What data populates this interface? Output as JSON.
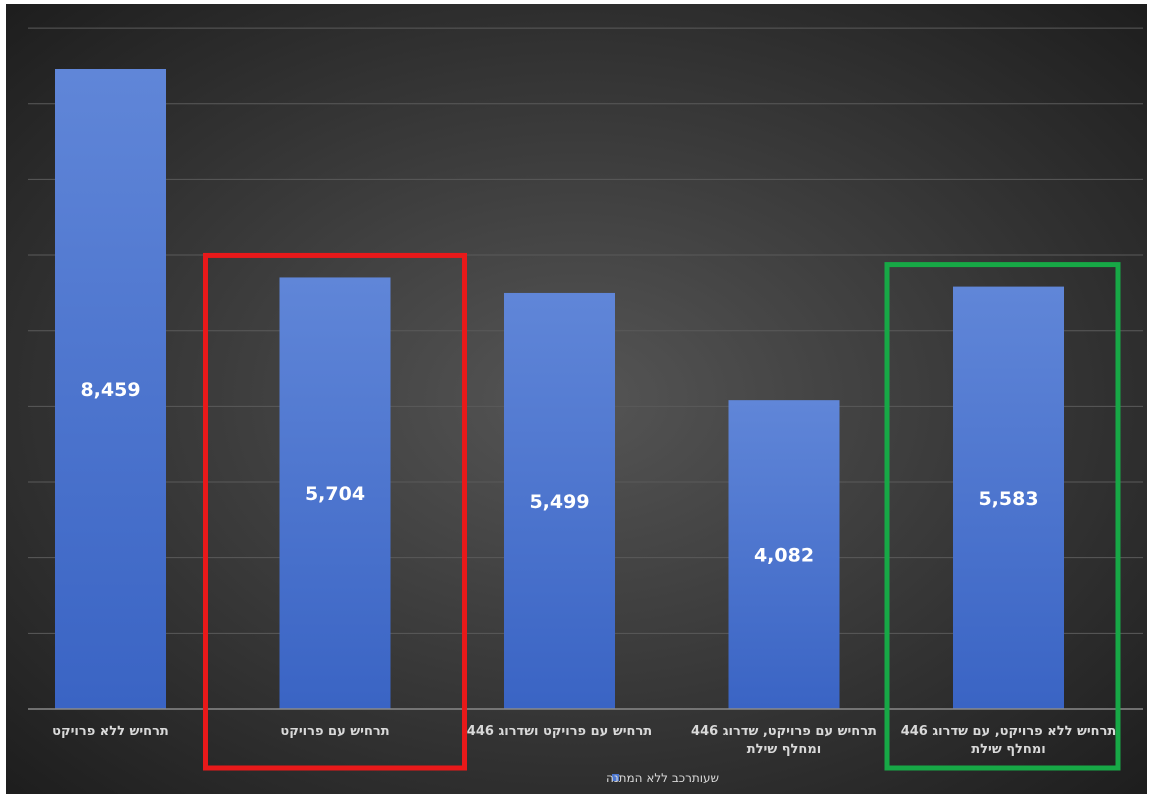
{
  "chart_data": {
    "type": "bar",
    "title": "",
    "xlabel": "",
    "ylabel": "",
    "ylim": [
      0,
      9000
    ],
    "grid": true,
    "legend_position": "bottom",
    "categories": [
      [
        "תרחיש ללא פרויקט"
      ],
      [
        "תרחיש עם פרויקט"
      ],
      [
        "תרחיש עם פרויקט ושדרוג 446"
      ],
      [
        "תרחיש עם פרויקט,  שדרוג 446",
        "ומחלף שילת"
      ],
      [
        "תרחיש ללא פרויקט,  עם שדרוג 446",
        "ומחלף שילת"
      ]
    ],
    "series": [
      {
        "name": "שעותרכב ללא המתנה",
        "values": [
          8459,
          5704,
          5499,
          4082,
          5583
        ],
        "labels": [
          "8,459",
          "5,704",
          "5,499",
          "4,082",
          "5,583"
        ]
      }
    ],
    "highlights": [
      {
        "category_index": 1,
        "color": "#e8191a"
      },
      {
        "category_index": 4,
        "color": "#17a846"
      }
    ]
  },
  "colors": {
    "bar": "#4a75cf",
    "background_center": "#555555",
    "background_edge": "#1e1e1e",
    "gridline": "#5a5a5a",
    "text": "#d9d9d9",
    "value_label": "#ffffff"
  }
}
